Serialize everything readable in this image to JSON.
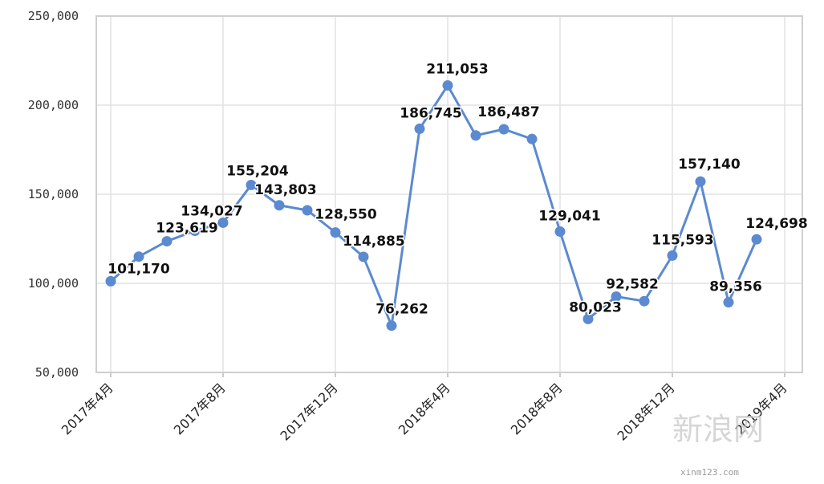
{
  "chart_data": {
    "type": "line",
    "title": "",
    "xlabel": "",
    "ylabel": "",
    "ylim": [
      50000,
      250000
    ],
    "yticks": [
      "50,000",
      "100,000",
      "150,000",
      "200,000",
      "250,000"
    ],
    "ytick_values": [
      50000,
      100000,
      150000,
      200000,
      250000
    ],
    "x_tick_labels": [
      "2017年4月",
      "2017年8月",
      "2017年12月",
      "2018年4月",
      "2018年8月",
      "2018年12月",
      "2019年4月"
    ],
    "x_tick_indices": [
      0,
      4,
      8,
      12,
      16,
      20,
      24
    ],
    "grid": true,
    "legend": "none",
    "line_color": "#5b8ad0",
    "categories": [
      "2017-04",
      "2017-05",
      "2017-06",
      "2017-07",
      "2017-08",
      "2017-09",
      "2017-10",
      "2017-11",
      "2017-12",
      "2018-01",
      "2018-02",
      "2018-03",
      "2018-04",
      "2018-05",
      "2018-06",
      "2018-07",
      "2018-08",
      "2018-09",
      "2018-10",
      "2018-11",
      "2018-12",
      "2019-01",
      "2019-02",
      "2019-03"
    ],
    "series": [
      {
        "values": [
          101170,
          115000,
          123619,
          129500,
          134027,
          155204,
          143803,
          141000,
          128550,
          114885,
          76262,
          186745,
          211053,
          183000,
          186487,
          181000,
          129041,
          80023,
          92582,
          90000,
          115593,
          157140,
          89356,
          124698
        ],
        "data_labels": [
          "101,170",
          "",
          "123,619",
          "",
          "134,027",
          "155,204",
          "143,803",
          "",
          "128,550",
          "114,885",
          "76,262",
          "186,745",
          "211,053",
          "",
          "186,487",
          "",
          "129,041",
          "80,023",
          "92,582",
          "",
          "115,593",
          "157,140",
          "89,356",
          "124,698"
        ]
      }
    ]
  },
  "watermark": {
    "main": "新浪网",
    "sub": "xinm123.com"
  }
}
